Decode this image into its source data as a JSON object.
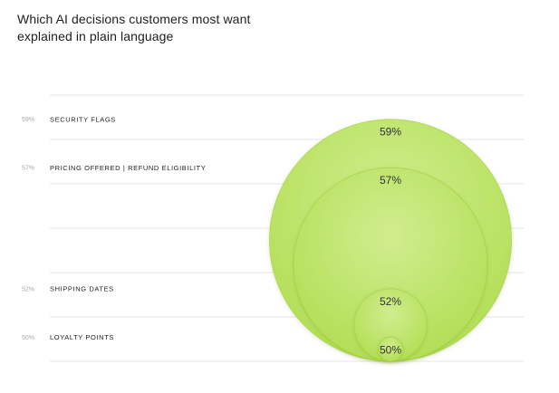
{
  "chart_data": {
    "type": "bubble",
    "title": "Which AI decisions customers most want explained in plain language",
    "categories": [
      "SECURITY FLAGS",
      "PRICING OFFERED | REFUND ELIGIBILITY",
      "SHIPPING DATES",
      "LOYALTY POINTS"
    ],
    "values": [
      59,
      57,
      52,
      50
    ],
    "axis_labels": [
      "59%",
      "57%",
      "52%",
      "50%"
    ],
    "value_labels": [
      "59%",
      "57%",
      "52%",
      "50%"
    ],
    "ylim": [
      49,
      60
    ],
    "grid": true,
    "colors": {
      "bubble_fill": "#b6e05a",
      "bubble_fill_light": "#ccec84",
      "bubble_edge": "#a6d243",
      "gridline": "#e6e6e6"
    }
  }
}
